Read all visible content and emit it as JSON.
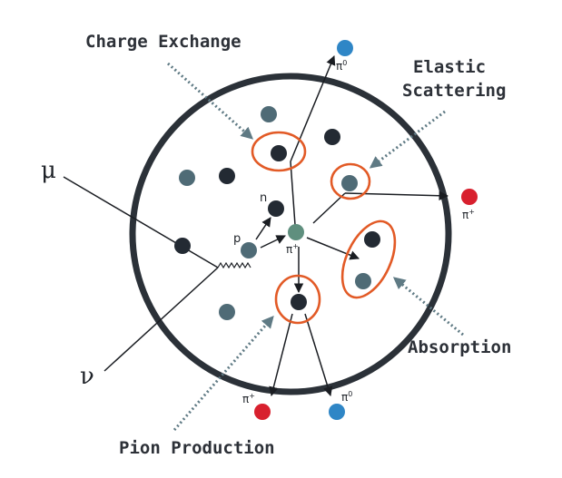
{
  "labels": {
    "charge_exchange": "Charge Exchange",
    "elastic_line1": "Elastic",
    "elastic_line2": "Scattering",
    "absorption": "Absorption",
    "pion_production": "Pion Production"
  },
  "particles": {
    "muon": "μ",
    "neutrino": "ν",
    "proton": "p",
    "neutron": "n",
    "pi_plus": "π",
    "pi_zero": "π",
    "plus_sup": "+",
    "zero_sup": "0"
  },
  "colors": {
    "nucleus_border": "#2b3138",
    "nucleon_dark": "#232a33",
    "nucleon_slate": "#4f6b76",
    "pion_charged_internal": "#5f8f7e",
    "pion_charged_out": "#d8202e",
    "pion_neutral": "#2f86c6",
    "highlight_ring": "#e25a26",
    "callout_arrow": "#5f7a84"
  },
  "icons": {
    "pointer": "dotted-arrow-icon",
    "track": "arrow-icon"
  }
}
